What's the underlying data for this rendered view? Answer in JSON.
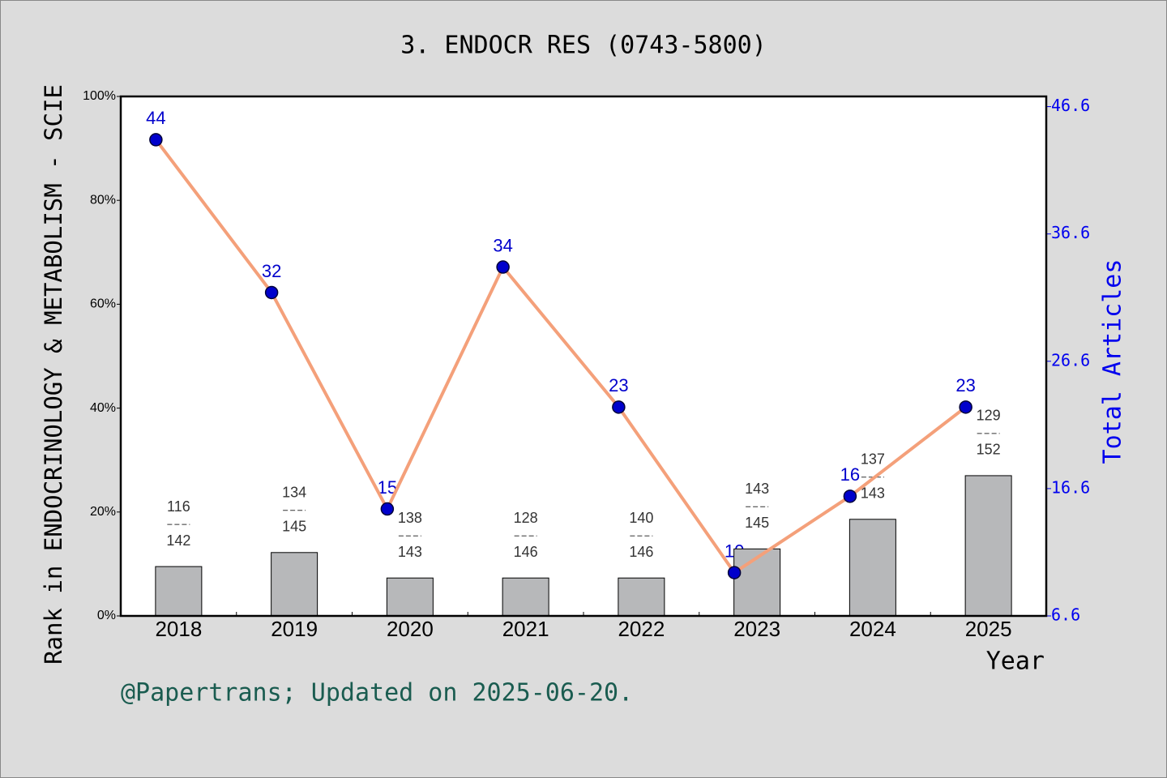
{
  "chart_data": {
    "type": "bar-line",
    "title": "3. ENDOCR RES (0743-5800)",
    "y_label": "Rank in ENDOCRINOLOGY & METABOLISM - SCIE",
    "y2_label": "Total Articles",
    "x_label": "Year",
    "footnote": "@Papertrans; Updated on 2025-06-20.",
    "categories": [
      "2018",
      "2019",
      "2020",
      "2021",
      "2022",
      "2023",
      "2024",
      "2025"
    ],
    "bars": {
      "color": "#b7b8ba",
      "values": [
        9.5,
        12.2,
        7.3,
        7.3,
        7.3,
        12.9,
        18.6,
        27.0
      ],
      "ranks": [
        116,
        134,
        138,
        128,
        140,
        143,
        137,
        129
      ],
      "totals": [
        142,
        145,
        143,
        146,
        146,
        145,
        143,
        152
      ]
    },
    "line": {
      "color": "#f4a07a",
      "marker_color": "#0000cc",
      "axis": "y2",
      "values": [
        44,
        32,
        15,
        34,
        23,
        10,
        16,
        23
      ]
    },
    "ylim": [
      0,
      100
    ],
    "yticks": [
      {
        "value": 0,
        "label": "0%"
      },
      {
        "value": 20,
        "label": "20%"
      },
      {
        "value": 40,
        "label": "40%"
      },
      {
        "value": 60,
        "label": "60%"
      },
      {
        "value": 80,
        "label": "80%"
      },
      {
        "value": 100,
        "label": "100%"
      }
    ],
    "y2lim": [
      6.6,
      47.4
    ],
    "y2ticks": [
      6.6,
      16.6,
      26.6,
      36.6,
      46.6
    ]
  }
}
